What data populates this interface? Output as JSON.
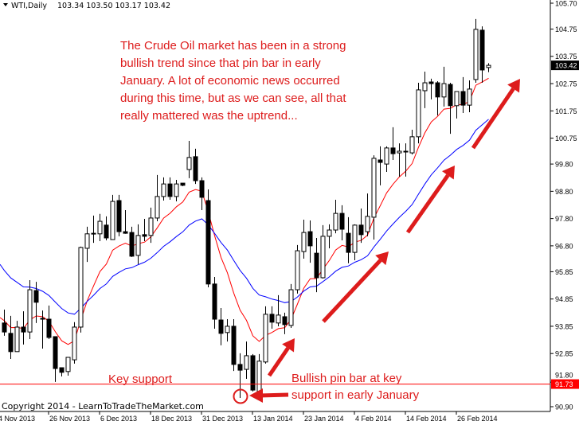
{
  "header": {
    "symbol": "WTI,Daily",
    "ohlc": "103.34 103.50 103.17 103.42",
    "dropdown_icon": "triangle-down-icon"
  },
  "copyright": "Copyright 2014 - LearnToTradeTheMarket.com",
  "annotations": {
    "main_text": [
      "The Crude Oil market has been in a strong",
      "bullish trend since that pin bar in early",
      "January. A lot of economic news occurred",
      "during this time, but as we can see, all that",
      "really mattered was the uptrend..."
    ],
    "key_support": "Key support",
    "pin_bar": [
      "Bullish pin bar at key",
      "support in early January"
    ],
    "color": "#dd1c1c"
  },
  "chart_data": {
    "type": "candlestick",
    "title": "",
    "symbol": "WTI",
    "timeframe": "Daily",
    "ylim": [
      90.9,
      105.7
    ],
    "y_ticks": [
      "105.70",
      "104.75",
      "103.75",
      "102.75",
      "101.75",
      "100.75",
      "99.80",
      "98.80",
      "97.80",
      "96.80",
      "95.85",
      "94.85",
      "93.85",
      "92.85",
      "91.80",
      "90.90"
    ],
    "x_ticks": [
      "4 Nov 2013",
      "26 Nov 2013",
      "6 Dec 2013",
      "18 Dec 2013",
      "31 Dec 2013",
      "13 Jan 2014",
      "23 Jan 2014",
      "4 Feb 2014",
      "14 Feb 2014",
      "26 Feb 2014"
    ],
    "current_price": "103.42",
    "support_level": "91.73",
    "grid": false,
    "colors": {
      "bull_body": "#ffffff",
      "bear_body": "#000000",
      "fast_ma": "#ff0000",
      "slow_ma": "#0000ff",
      "support": "#ff0000"
    },
    "moving_averages": [
      {
        "type": "EMA",
        "period": 8,
        "color": "#ff0000"
      },
      {
        "type": "EMA",
        "period": 21,
        "color": "#0000ff"
      }
    ],
    "ohlc": [
      [
        93.97,
        94.46,
        93.5,
        93.64
      ],
      [
        93.59,
        94.23,
        92.65,
        92.92
      ],
      [
        92.92,
        94.05,
        92.92,
        93.82
      ],
      [
        93.82,
        94.4,
        93.18,
        93.64
      ],
      [
        93.64,
        95.54,
        93.38,
        95.19
      ],
      [
        95.16,
        95.48,
        93.97,
        94.73
      ],
      [
        94.14,
        94.43,
        93.03,
        94.11
      ],
      [
        94.11,
        94.61,
        93.38,
        93.44
      ],
      [
        93.47,
        93.47,
        91.81,
        92.3
      ],
      [
        92.33,
        92.33,
        92.01,
        92.16
      ],
      [
        92.19,
        92.71,
        92.04,
        92.71
      ],
      [
        92.62,
        94.0,
        92.48,
        93.82
      ],
      [
        93.82,
        96.77,
        93.62,
        96.74
      ],
      [
        96.71,
        97.5,
        96.21,
        97.24
      ],
      [
        97.26,
        97.91,
        96.91,
        97.24
      ],
      [
        97.24,
        97.97,
        96.97,
        97.7
      ],
      [
        97.56,
        97.88,
        97.0,
        97.09
      ],
      [
        97.03,
        98.67,
        97.03,
        98.43
      ],
      [
        98.46,
        98.67,
        97.15,
        97.32
      ],
      [
        97.32,
        98.11,
        97.24,
        97.26
      ],
      [
        97.29,
        97.5,
        96.39,
        96.42
      ],
      [
        96.45,
        97.59,
        96.13,
        97.18
      ],
      [
        97.21,
        97.79,
        96.97,
        97.15
      ],
      [
        97.18,
        98.2,
        96.91,
        97.82
      ],
      [
        97.82,
        99.4,
        97.7,
        98.61
      ],
      [
        98.61,
        99.31,
        98.46,
        99.07
      ],
      [
        99.07,
        99.31,
        98.49,
        98.61
      ],
      [
        98.61,
        99.22,
        98.43,
        99.07
      ],
      [
        99.1,
        99.1,
        98.99,
        99.02
      ],
      [
        99.6,
        100.65,
        99.28,
        100.04
      ],
      [
        100.07,
        100.36,
        99.07,
        99.19
      ],
      [
        99.19,
        99.31,
        98.11,
        98.58
      ],
      [
        98.46,
        98.87,
        95.28,
        95.4
      ],
      [
        95.4,
        95.66,
        93.76,
        94.11
      ],
      [
        94.08,
        94.52,
        93.15,
        93.59
      ],
      [
        93.62,
        94.11,
        93.29,
        93.85
      ],
      [
        93.85,
        94.11,
        92.21,
        92.45
      ],
      [
        92.45,
        92.86,
        91.22,
        92.24
      ],
      [
        92.27,
        93.29,
        91.92,
        92.77
      ],
      [
        92.77,
        92.83,
        91.46,
        91.51
      ],
      [
        91.46,
        92.83,
        91.43,
        92.57
      ],
      [
        92.54,
        94.58,
        92.48,
        94.29
      ],
      [
        94.29,
        94.58,
        93.76,
        94.0
      ],
      [
        93.97,
        94.99,
        93.85,
        94.26
      ],
      [
        94.2,
        94.35,
        93.56,
        93.91
      ],
      [
        93.88,
        95.4,
        93.79,
        95.19
      ],
      [
        95.19,
        96.83,
        95.05,
        96.62
      ],
      [
        96.59,
        97.76,
        96.33,
        97.29
      ],
      [
        97.32,
        97.73,
        96.18,
        96.8
      ],
      [
        96.53,
        97.09,
        95.1,
        95.63
      ],
      [
        95.63,
        97.56,
        95.6,
        97.15
      ],
      [
        97.15,
        97.59,
        96.71,
        97.38
      ],
      [
        97.38,
        98.49,
        97.26,
        97.99
      ],
      [
        97.99,
        98.29,
        97.0,
        97.41
      ],
      [
        97.26,
        97.85,
        96.16,
        96.56
      ],
      [
        96.56,
        97.59,
        96.27,
        97.56
      ],
      [
        97.56,
        98.17,
        96.91,
        97.21
      ],
      [
        97.32,
        98.72,
        97.15,
        97.88
      ],
      [
        97.85,
        100.12,
        97.03,
        100.01
      ],
      [
        99.95,
        100.45,
        99.02,
        99.86
      ],
      [
        99.8,
        100.45,
        99.51,
        100.39
      ],
      [
        100.39,
        101.15,
        99.95,
        100.18
      ],
      [
        100.21,
        100.56,
        99.34,
        100.27
      ],
      [
        100.27,
        100.56,
        99.34,
        100.27
      ],
      [
        100.21,
        101.06,
        100.15,
        100.8
      ],
      [
        100.8,
        102.78,
        100.56,
        102.52
      ],
      [
        102.49,
        103.19,
        101.85,
        102.78
      ],
      [
        102.81,
        102.93,
        102.17,
        102.75
      ],
      [
        102.78,
        102.84,
        101.58,
        102.26
      ],
      [
        102.26,
        103.37,
        101.91,
        102.75
      ],
      [
        102.72,
        102.78,
        100.91,
        101.94
      ],
      [
        101.94,
        102.46,
        101.47,
        102.46
      ],
      [
        102.46,
        102.99,
        101.67,
        101.96
      ],
      [
        101.96,
        102.87,
        101.7,
        102.55
      ],
      [
        102.9,
        105.12,
        102.78,
        104.74
      ],
      [
        104.71,
        104.85,
        102.78,
        103.25
      ],
      [
        103.34,
        103.5,
        103.17,
        103.42
      ]
    ]
  }
}
